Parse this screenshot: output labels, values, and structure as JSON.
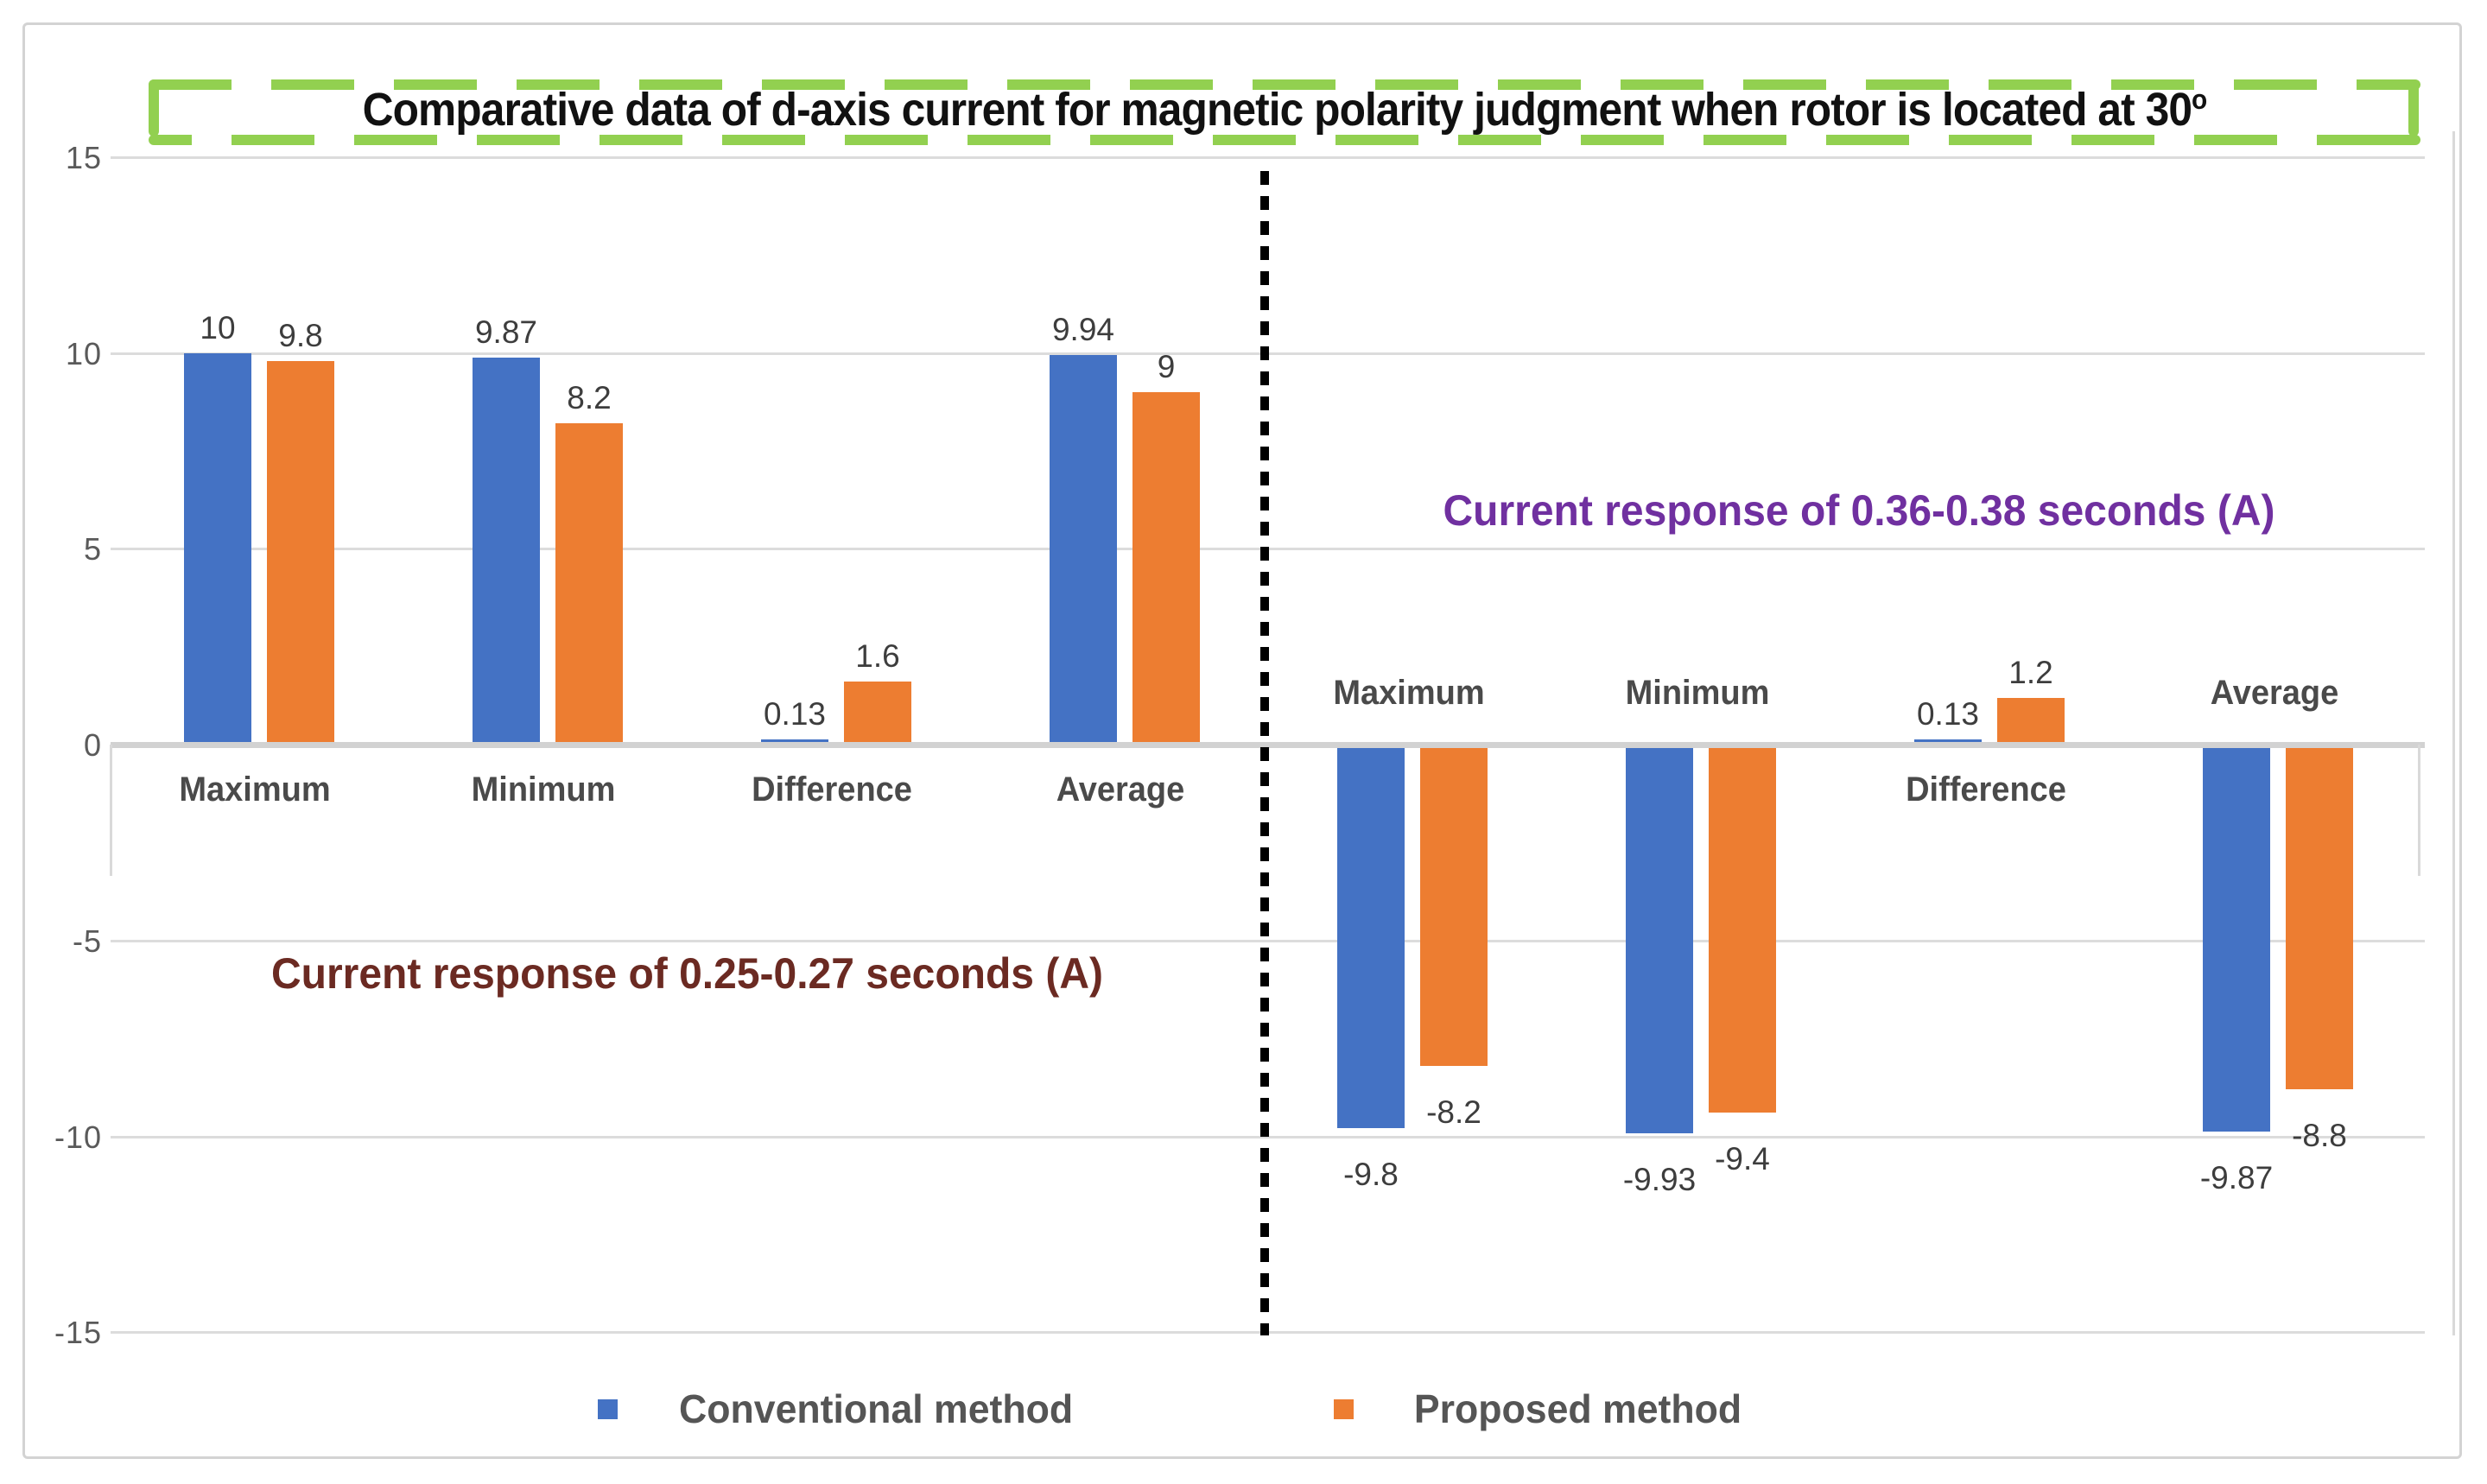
{
  "title": {
    "text": "Comparative data of d-axis current for magnetic polarity judgment when rotor is located at 30",
    "superscript": "o"
  },
  "legend": {
    "items": [
      {
        "label": "Conventional method",
        "color": "#4472C4"
      },
      {
        "label": "Proposed method",
        "color": "#ED7D31"
      }
    ]
  },
  "chart_data": {
    "type": "bar",
    "title": "Comparative data of d-axis current for magnetic polarity judgment when rotor is located at 30°",
    "ylabel": "",
    "xlabel": "",
    "ylim": [
      -15,
      15
    ],
    "y_ticks": [
      15,
      10,
      5,
      0,
      -5,
      -10,
      -15
    ],
    "grid": true,
    "legend_position": "bottom",
    "accent_colors": {
      "green_border": "#92D050",
      "divider": "#000000"
    },
    "groups": [
      {
        "subtitle": "Current response of 0.25-0.27 seconds (A)",
        "subtitle_color": "#6B2A22",
        "categories": [
          "Maximum",
          "Minimum",
          "Difference",
          "Average"
        ],
        "series": [
          {
            "name": "Conventional method",
            "color": "#4472C4",
            "values": [
              10,
              9.87,
              0.13,
              9.94
            ]
          },
          {
            "name": "Proposed method",
            "color": "#ED7D31",
            "values": [
              9.8,
              8.2,
              1.6,
              9
            ]
          }
        ]
      },
      {
        "subtitle": "Current response of 0.36-0.38 seconds (A)",
        "subtitle_color": "#7030A0",
        "categories": [
          "Maximum",
          "Minimum",
          "Difference",
          "Average"
        ],
        "series": [
          {
            "name": "Conventional method",
            "color": "#4472C4",
            "values": [
              -9.8,
              -9.93,
              0.13,
              -9.87
            ]
          },
          {
            "name": "Proposed method",
            "color": "#ED7D31",
            "values": [
              -8.2,
              -9.4,
              1.2,
              -8.8
            ]
          }
        ]
      }
    ]
  }
}
